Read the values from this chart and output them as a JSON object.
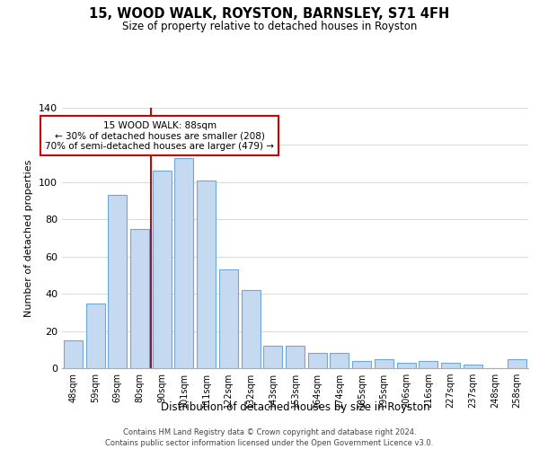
{
  "title": "15, WOOD WALK, ROYSTON, BARNSLEY, S71 4FH",
  "subtitle": "Size of property relative to detached houses in Royston",
  "xlabel": "Distribution of detached houses by size in Royston",
  "ylabel": "Number of detached properties",
  "bar_labels": [
    "48sqm",
    "59sqm",
    "69sqm",
    "80sqm",
    "90sqm",
    "101sqm",
    "111sqm",
    "122sqm",
    "132sqm",
    "143sqm",
    "153sqm",
    "164sqm",
    "174sqm",
    "185sqm",
    "195sqm",
    "206sqm",
    "216sqm",
    "227sqm",
    "237sqm",
    "248sqm",
    "258sqm"
  ],
  "bar_values": [
    15,
    35,
    93,
    75,
    106,
    113,
    101,
    53,
    42,
    12,
    12,
    8,
    8,
    4,
    5,
    3,
    4,
    3,
    2,
    0,
    5
  ],
  "bar_color": "#c5d9f1",
  "bar_edge_color": "#6fa8d8",
  "vline_color": "#cc0000",
  "vline_x_index": 4,
  "ylim": [
    0,
    140
  ],
  "yticks": [
    0,
    20,
    40,
    60,
    80,
    100,
    120,
    140
  ],
  "annotation_title": "15 WOOD WALK: 88sqm",
  "annotation_line1": "← 30% of detached houses are smaller (208)",
  "annotation_line2": "70% of semi-detached houses are larger (479) →",
  "annotation_box_color": "#ffffff",
  "annotation_box_edge": "#cc0000",
  "footer1": "Contains HM Land Registry data © Crown copyright and database right 2024.",
  "footer2": "Contains public sector information licensed under the Open Government Licence v3.0.",
  "bg_color": "#ffffff",
  "grid_color": "#d8d8d8"
}
